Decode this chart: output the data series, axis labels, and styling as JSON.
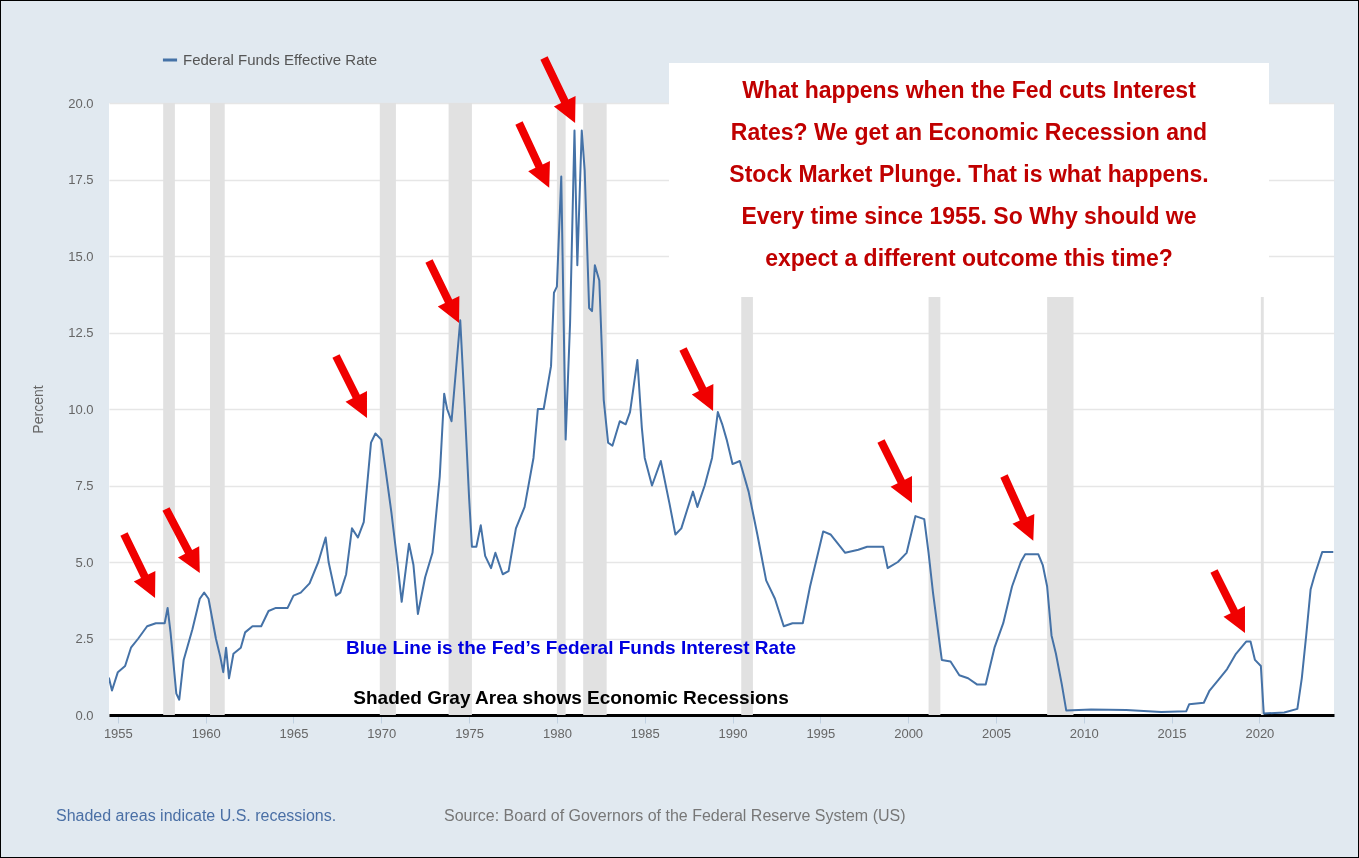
{
  "chart_data": {
    "type": "line",
    "ylabel": "Percent",
    "annotations": [
      "What happens when the Fed cuts Interest Rates? We get an Economic Recession and Stock Market Plunge. That is what happens. Every time since 1955. So Why should we expect a different outcome this time?",
      "Blue Line is the Fed’s Federal Funds Interest Rate",
      "Shaded Gray Area shows Economic Recessions",
      "Shaded areas indicate U.S. recessions.",
      "Source: Board of Governors of the Federal Reserve System (US)"
    ],
    "x": [
      "1954-07",
      "1954-09",
      "1955-01",
      "1955-06",
      "1955-10",
      "1956-03",
      "1956-09",
      "1957-03",
      "1957-09",
      "1957-11",
      "1958-01",
      "1958-05",
      "1958-07",
      "1958-10",
      "1959-04",
      "1959-09",
      "1959-12",
      "1960-03",
      "1960-08",
      "1960-11",
      "1961-01",
      "1961-03",
      "1961-05",
      "1961-08",
      "1962-01",
      "1962-04",
      "1962-09",
      "1963-03",
      "1963-08",
      "1964-01",
      "1964-09",
      "1965-01",
      "1965-06",
      "1965-12",
      "1966-06",
      "1966-11",
      "1967-01",
      "1967-06",
      "1967-09",
      "1968-01",
      "1968-05",
      "1968-09",
      "1969-01",
      "1969-06",
      "1969-09",
      "1970-01",
      "1970-04",
      "1970-08",
      "1970-12",
      "1971-03",
      "1971-08",
      "1971-11",
      "1972-02",
      "1972-07",
      "1972-12",
      "1973-05",
      "1973-08",
      "1973-10",
      "1974-01",
      "1974-07",
      "1974-10",
      "1975-01",
      "1975-03",
      "1975-06",
      "1975-09",
      "1975-12",
      "1976-04",
      "1976-07",
      "1976-12",
      "1977-04",
      "1977-09",
      "1978-03",
      "1978-09",
      "1978-12",
      "1979-04",
      "1979-09",
      "1979-11",
      "1980-01",
      "1980-04",
      "1980-07",
      "1980-10",
      "1981-01",
      "1981-03",
      "1981-06",
      "1981-08",
      "1981-11",
      "1982-01",
      "1982-03",
      "1982-06",
      "1982-09",
      "1982-12",
      "1983-03",
      "1983-08",
      "1983-12",
      "1984-03",
      "1984-08",
      "1984-11",
      "1985-01",
      "1985-06",
      "1985-12",
      "1986-06",
      "1986-10",
      "1987-02",
      "1987-06",
      "1987-10",
      "1988-01",
      "1988-06",
      "1988-11",
      "1989-03",
      "1989-06",
      "1989-09",
      "1990-01",
      "1990-06",
      "1990-12",
      "1991-06",
      "1991-12",
      "1992-06",
      "1992-12",
      "1993-06",
      "1994-01",
      "1994-06",
      "1994-12",
      "1995-03",
      "1995-08",
      "1996-01",
      "1996-06",
      "1997-03",
      "1997-09",
      "1998-08",
      "1998-11",
      "1999-06",
      "1999-12",
      "2000-06",
      "2000-12",
      "2001-03",
      "2001-06",
      "2001-12",
      "2002-06",
      "2002-12",
      "2003-06",
      "2003-12",
      "2004-06",
      "2004-12",
      "2005-06",
      "2005-12",
      "2006-06",
      "2006-09",
      "2007-06",
      "2007-09",
      "2007-12",
      "2008-03",
      "2008-06",
      "2008-10",
      "2009-01",
      "2010-06",
      "2012-06",
      "2014-06",
      "2015-11",
      "2016-01",
      "2016-11",
      "2017-03",
      "2017-09",
      "2018-03",
      "2018-09",
      "2019-04",
      "2019-07",
      "2019-10",
      "2020-02",
      "2020-04",
      "2021-06",
      "2022-03",
      "2022-06",
      "2022-09",
      "2022-12",
      "2023-03",
      "2023-08",
      "2024-03"
    ],
    "series": [
      {
        "name": "Federal Funds Effective Rate",
        "color": "#4572a7",
        "values": [
          1.2,
          0.8,
          1.4,
          1.6,
          2.2,
          2.5,
          2.9,
          3.0,
          3.0,
          3.5,
          2.7,
          0.7,
          0.5,
          1.8,
          2.8,
          3.8,
          4.0,
          3.8,
          2.5,
          1.9,
          1.4,
          2.2,
          1.2,
          2.0,
          2.2,
          2.7,
          2.9,
          2.9,
          3.4,
          3.5,
          3.5,
          3.9,
          4.0,
          4.3,
          5.0,
          5.8,
          5.0,
          3.9,
          4.0,
          4.6,
          6.1,
          5.8,
          6.3,
          8.9,
          9.2,
          9.0,
          8.0,
          6.6,
          5.0,
          3.7,
          5.6,
          4.9,
          3.3,
          4.5,
          5.3,
          7.8,
          10.5,
          10.0,
          9.6,
          12.9,
          10.1,
          7.1,
          5.5,
          5.5,
          6.2,
          5.2,
          4.8,
          5.3,
          4.6,
          4.7,
          6.1,
          6.8,
          8.4,
          10.0,
          10.0,
          11.4,
          13.8,
          14.0,
          17.6,
          9.0,
          12.8,
          19.1,
          14.7,
          19.1,
          17.8,
          13.3,
          13.2,
          14.7,
          14.2,
          10.3,
          8.9,
          8.8,
          9.6,
          9.5,
          9.9,
          11.6,
          9.4,
          8.4,
          7.5,
          8.3,
          6.9,
          5.9,
          6.1,
          6.7,
          7.3,
          6.8,
          7.5,
          8.4,
          9.9,
          9.5,
          9.0,
          8.2,
          8.3,
          7.3,
          5.9,
          4.4,
          3.8,
          2.9,
          3.0,
          3.0,
          4.2,
          5.4,
          6.0,
          5.9,
          5.6,
          5.3,
          5.4,
          5.5,
          5.5,
          4.8,
          5.0,
          5.3,
          6.5,
          6.4,
          5.3,
          4.0,
          1.8,
          1.75,
          1.3,
          1.2,
          1.0,
          1.0,
          2.2,
          3.0,
          4.2,
          5.0,
          5.25,
          5.25,
          4.9,
          4.2,
          2.6,
          2.0,
          1.0,
          0.15,
          0.18,
          0.16,
          0.1,
          0.12,
          0.35,
          0.4,
          0.8,
          1.15,
          1.5,
          2.0,
          2.4,
          2.4,
          1.8,
          1.6,
          0.05,
          0.08,
          0.2,
          1.2,
          2.6,
          4.1,
          4.6,
          5.33,
          5.33
        ]
      }
    ],
    "xlim": [
      "1954-07",
      "2024-04"
    ],
    "xticks": [
      "1955",
      "1960",
      "1965",
      "1970",
      "1975",
      "1980",
      "1985",
      "1990",
      "1995",
      "2000",
      "2005",
      "2010",
      "2015",
      "2020"
    ],
    "ylim": [
      0,
      20
    ],
    "yticks": [
      {
        "value": 0,
        "label": "0.0"
      },
      {
        "value": 2.5,
        "label": "2.5"
      },
      {
        "value": 5,
        "label": "5.0"
      },
      {
        "value": 7.5,
        "label": "7.5"
      },
      {
        "value": 10,
        "label": "10.0"
      },
      {
        "value": 12.5,
        "label": "12.5"
      },
      {
        "value": 15,
        "label": "15.0"
      },
      {
        "value": 17.5,
        "label": "17.5"
      },
      {
        "value": 20,
        "label": "20.0"
      }
    ],
    "bands": [
      {
        "axis": "x",
        "from": "1957-08",
        "to": "1958-04",
        "color": "#e1e1e1"
      },
      {
        "axis": "x",
        "from": "1960-04",
        "to": "1961-02",
        "color": "#e1e1e1"
      },
      {
        "axis": "x",
        "from": "1969-12",
        "to": "1970-11",
        "color": "#e1e1e1"
      },
      {
        "axis": "x",
        "from": "1973-11",
        "to": "1975-03",
        "color": "#e1e1e1"
      },
      {
        "axis": "x",
        "from": "1980-01",
        "to": "1980-07",
        "color": "#e1e1e1"
      },
      {
        "axis": "x",
        "from": "1981-07",
        "to": "1982-11",
        "color": "#e1e1e1"
      },
      {
        "axis": "x",
        "from": "1990-07",
        "to": "1991-03",
        "color": "#e1e1e1"
      },
      {
        "axis": "x",
        "from": "2001-03",
        "to": "2001-11",
        "color": "#e1e1e1"
      },
      {
        "axis": "x",
        "from": "2007-12",
        "to": "2009-06",
        "color": "#e1e1e1"
      },
      {
        "axis": "x",
        "from": "2020-02",
        "to": "2020-04",
        "color": "#e1e1e1"
      }
    ],
    "grid": "y",
    "legend": "top left"
  }
}
